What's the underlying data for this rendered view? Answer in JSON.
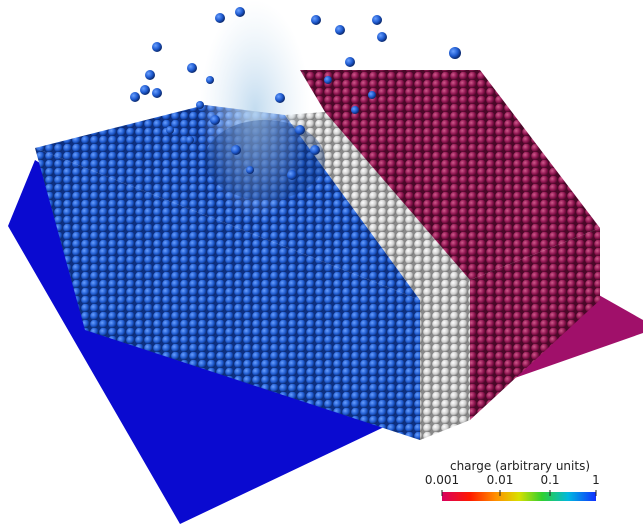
{
  "legend": {
    "title": "charge (arbitrary units)",
    "ticks": [
      "0.001",
      "0.01",
      "0.1",
      "1"
    ]
  }
}
